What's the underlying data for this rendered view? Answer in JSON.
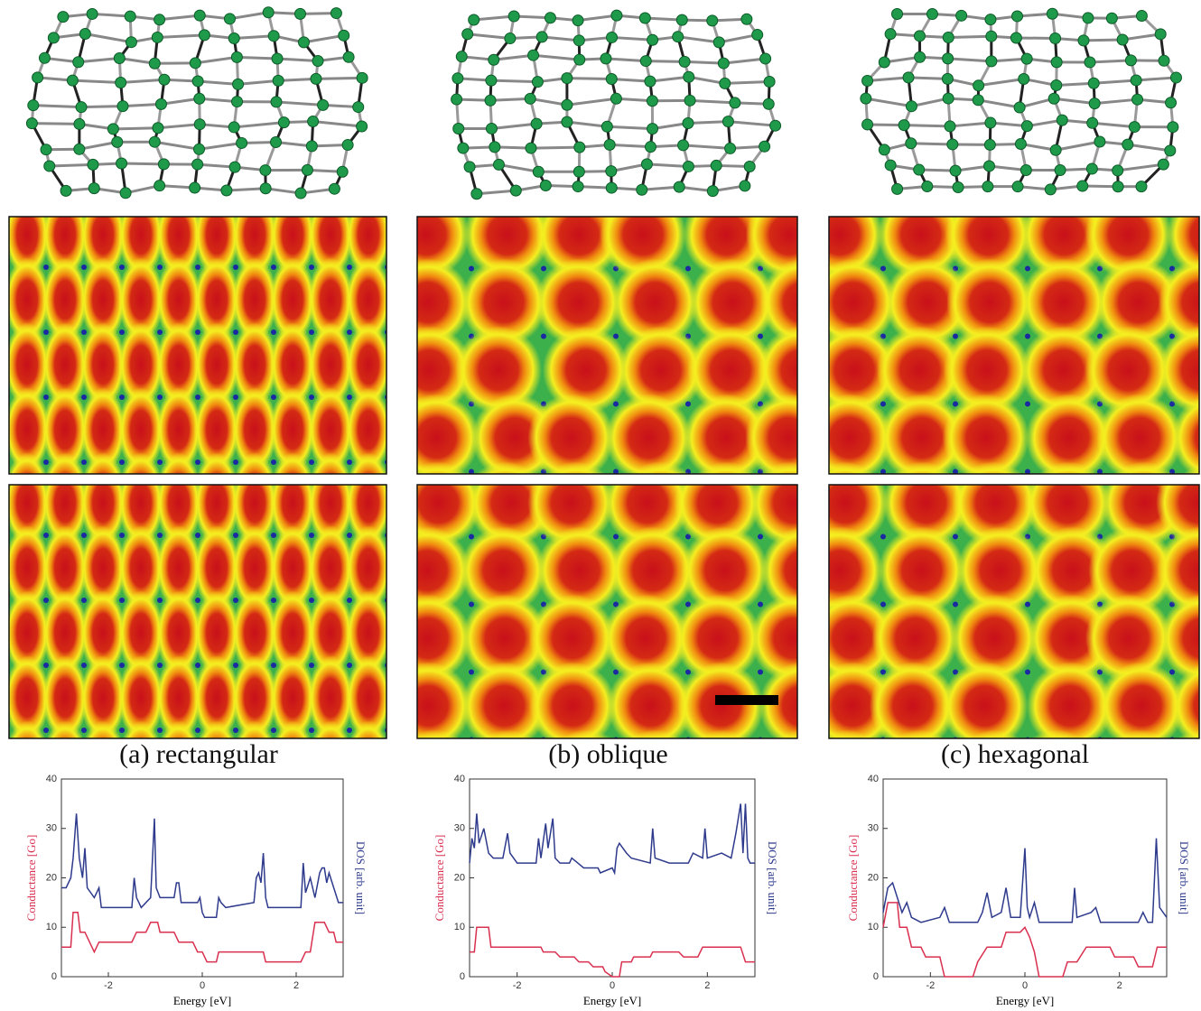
{
  "chart_data": [
    {
      "type": "line",
      "title": "(a) rectangular",
      "xlabel": "Energy [eV]",
      "ylabel": "Conductance [Go]",
      "y2label": "DOS [arb. unit]",
      "xlim": [
        -3,
        3
      ],
      "xticks": [
        -2,
        0,
        2
      ],
      "ylim": [
        0,
        40
      ],
      "yticks": [
        0,
        10,
        20,
        30,
        40
      ],
      "series": [
        {
          "color": "#d9304f",
          "x": [
            -3,
            -2.8,
            -2.75,
            -2.65,
            -2.6,
            -2.5,
            -2.4,
            -2.3,
            -2.2,
            -1.5,
            -1.4,
            -1.2,
            -1.1,
            -0.95,
            -0.9,
            -0.6,
            -0.5,
            -0.2,
            -0.1,
            0,
            0.1,
            0.3,
            0.35,
            1.3,
            1.35,
            2.1,
            2.2,
            2.3,
            2.4,
            2.6,
            2.7,
            2.8,
            2.85,
            3
          ],
          "values": [
            6,
            6,
            13,
            13,
            9,
            9,
            7,
            5,
            7,
            7,
            9,
            9,
            11,
            11,
            9,
            9,
            7,
            7,
            5,
            5,
            3,
            3,
            5,
            5,
            3,
            3,
            5,
            5,
            11,
            11,
            9,
            9,
            7,
            7
          ]
        },
        {
          "color": "#2e3a8c",
          "x": [
            -3,
            -2.9,
            -2.8,
            -2.75,
            -2.68,
            -2.62,
            -2.55,
            -2.5,
            -2.45,
            -2.3,
            -2.2,
            -2.15,
            -1.5,
            -1.45,
            -1.4,
            -1.3,
            -1.1,
            -1.02,
            -0.98,
            -0.9,
            -0.6,
            -0.55,
            -0.5,
            -0.45,
            -0.1,
            -0.05,
            0,
            0.05,
            0.3,
            0.35,
            0.4,
            0.5,
            1.1,
            1.15,
            1.2,
            1.25,
            1.3,
            1.35,
            1.4,
            2.1,
            2.15,
            2.2,
            2.3,
            2.4,
            2.5,
            2.55,
            2.6,
            2.65,
            2.7,
            2.8,
            2.9,
            3
          ],
          "values": [
            18,
            18,
            20,
            24,
            33,
            24,
            20,
            26,
            18,
            16,
            18,
            14,
            14,
            20,
            16,
            14,
            16,
            32,
            18,
            16,
            16,
            19,
            19,
            15,
            15,
            16,
            13,
            12,
            12,
            16,
            15,
            14,
            15,
            20,
            21,
            19,
            25,
            16,
            14,
            14,
            23,
            17,
            20,
            16,
            21,
            22,
            22,
            19,
            21,
            18,
            15,
            15
          ]
        }
      ]
    },
    {
      "type": "line",
      "title": "(b) oblique",
      "xlabel": "Energy [eV]",
      "ylabel": "Conductance [Go]",
      "y2label": "DOS [arb. unit]",
      "xlim": [
        -3,
        3
      ],
      "xticks": [
        -2,
        0,
        2
      ],
      "ylim": [
        0,
        40
      ],
      "yticks": [
        0,
        10,
        20,
        30,
        40
      ],
      "series": [
        {
          "color": "#d9304f",
          "x": [
            -3,
            -2.9,
            -2.85,
            -2.6,
            -2.55,
            -1.5,
            -1.45,
            -1.2,
            -1.1,
            -0.8,
            -0.7,
            -0.5,
            -0.4,
            -0.2,
            -0.15,
            0,
            0.15,
            0.2,
            0.4,
            0.45,
            0.8,
            0.85,
            1.4,
            1.5,
            1.8,
            1.9,
            2.7,
            2.8,
            3
          ],
          "values": [
            5,
            5,
            10,
            10,
            6,
            6,
            5,
            5,
            4,
            4,
            3,
            3,
            2,
            2,
            1,
            0,
            0,
            3,
            3,
            4,
            4,
            5,
            5,
            4,
            4,
            6,
            6,
            3,
            3
          ]
        },
        {
          "color": "#2e3a8c",
          "x": [
            -3,
            -2.95,
            -2.9,
            -2.85,
            -2.8,
            -2.7,
            -2.6,
            -2.5,
            -2.3,
            -2.2,
            -2.15,
            -2,
            -1.6,
            -1.55,
            -1.5,
            -1.4,
            -1.35,
            -1.25,
            -1.2,
            -1.1,
            -0.9,
            -0.85,
            -0.6,
            -0.55,
            -0.3,
            -0.25,
            0,
            0.05,
            0.1,
            0.15,
            0.3,
            0.4,
            0.8,
            0.85,
            0.9,
            1.2,
            1.6,
            1.7,
            1.9,
            1.95,
            2,
            2.3,
            2.5,
            2.6,
            2.7,
            2.75,
            2.8,
            2.85,
            2.9,
            3
          ],
          "values": [
            23,
            28,
            26,
            33,
            27,
            30,
            25,
            24,
            24,
            29,
            25,
            23,
            23,
            28,
            24,
            31,
            26,
            32,
            24,
            23,
            23,
            24,
            22,
            22,
            22,
            21,
            22,
            21,
            26,
            27,
            25,
            24,
            23,
            30,
            24,
            23,
            23,
            25,
            24,
            30,
            24,
            25,
            24,
            29,
            35,
            25,
            35,
            24,
            23,
            23
          ]
        }
      ]
    },
    {
      "type": "line",
      "title": "(c) hexagonal",
      "xlabel": "Energy [eV]",
      "ylabel": "Conductance [Go]",
      "y2label": "DOS [arb. unit]",
      "xlim": [
        -3,
        3
      ],
      "xticks": [
        -2,
        0,
        2
      ],
      "ylim": [
        0,
        40
      ],
      "yticks": [
        0,
        10,
        20,
        30,
        40
      ],
      "series": [
        {
          "color": "#d9304f",
          "x": [
            -3,
            -2.9,
            -2.7,
            -2.65,
            -2.5,
            -2.4,
            -2.2,
            -2.1,
            -1.8,
            -1.7,
            -1.1,
            -1,
            -0.8,
            -0.5,
            -0.4,
            -0.1,
            0,
            0.1,
            0.2,
            0.3,
            0.8,
            0.9,
            1.1,
            1.3,
            1.8,
            1.9,
            2.3,
            2.4,
            2.7,
            2.8,
            3
          ],
          "values": [
            10,
            15,
            15,
            10,
            10,
            6,
            6,
            4,
            4,
            0,
            0,
            3,
            6,
            6,
            9,
            9,
            10,
            8,
            5,
            0,
            0,
            3,
            3,
            6,
            6,
            4,
            4,
            2,
            2,
            6,
            6
          ]
        },
        {
          "color": "#2e3a8c",
          "x": [
            -3,
            -2.9,
            -2.8,
            -2.7,
            -2.6,
            -2.5,
            -2.4,
            -2.2,
            -1.8,
            -1.7,
            -1.6,
            -1,
            -0.9,
            -0.8,
            -0.7,
            -0.5,
            -0.4,
            -0.3,
            -0.1,
            0,
            0.05,
            0.1,
            0.2,
            0.3,
            1,
            1.05,
            1.1,
            1.4,
            1.5,
            1.6,
            2.4,
            2.5,
            2.6,
            2.7,
            2.78,
            2.85,
            3
          ],
          "values": [
            13,
            18,
            19,
            16,
            13,
            15,
            12,
            11,
            12,
            14,
            11,
            11,
            13,
            17,
            12,
            13,
            18,
            12,
            12,
            26,
            14,
            12,
            15,
            11,
            11,
            18,
            12,
            13,
            14,
            11,
            11,
            13,
            11,
            11,
            28,
            14,
            12
          ]
        }
      ]
    }
  ]
}
